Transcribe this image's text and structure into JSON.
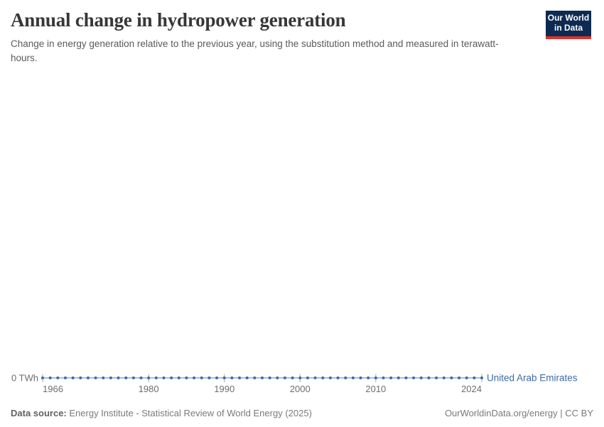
{
  "header": {
    "title": "Annual change in hydropower generation",
    "subtitle": "Change in energy generation relative to the previous year, using the substitution method and measured in terawatt-hours."
  },
  "logo": {
    "line1": "Our World",
    "line2": "in Data",
    "bg_color": "#0d2b52",
    "bar_color": "#dc3328",
    "text_color": "#ffffff"
  },
  "chart_data": {
    "type": "line",
    "title": "Annual change in hydropower generation",
    "ylabel": "",
    "xlabel": "",
    "grid": false,
    "legend_position": "inline-right",
    "x": [
      1966,
      1967,
      1968,
      1969,
      1970,
      1971,
      1972,
      1973,
      1974,
      1975,
      1976,
      1977,
      1978,
      1979,
      1980,
      1981,
      1982,
      1983,
      1984,
      1985,
      1986,
      1987,
      1988,
      1989,
      1990,
      1991,
      1992,
      1993,
      1994,
      1995,
      1996,
      1997,
      1998,
      1999,
      2000,
      2001,
      2002,
      2003,
      2004,
      2005,
      2006,
      2007,
      2008,
      2009,
      2010,
      2011,
      2012,
      2013,
      2014,
      2015,
      2016,
      2017,
      2018,
      2019,
      2020,
      2021,
      2022,
      2023,
      2024
    ],
    "series": [
      {
        "name": "United Arab Emirates",
        "color": "#3d6aa6",
        "line_color": "#a9c0dd",
        "values": [
          0,
          0,
          0,
          0,
          0,
          0,
          0,
          0,
          0,
          0,
          0,
          0,
          0,
          0,
          0,
          0,
          0,
          0,
          0,
          0,
          0,
          0,
          0,
          0,
          0,
          0,
          0,
          0,
          0,
          0,
          0,
          0,
          0,
          0,
          0,
          0,
          0,
          0,
          0,
          0,
          0,
          0,
          0,
          0,
          0,
          0,
          0,
          0,
          0,
          0,
          0,
          0,
          0,
          0,
          0,
          0,
          0,
          0,
          0
        ]
      }
    ],
    "x_ticks": [
      1966,
      1980,
      1990,
      2000,
      2010,
      2024
    ],
    "y_ticks": [
      {
        "value": 0,
        "label": "0 TWh"
      }
    ]
  },
  "footer": {
    "source_label": "Data source:",
    "source_text": "Energy Institute - Statistical Review of World Energy (2025)",
    "credit": "OurWorldinData.org/energy | CC BY"
  },
  "colors": {
    "axis_text": "#6e6e6e",
    "tick": "#a3a3a3",
    "title_text": "#373737",
    "subtitle_text": "#5a5a5a",
    "footer_text": "#7a7a7a"
  }
}
